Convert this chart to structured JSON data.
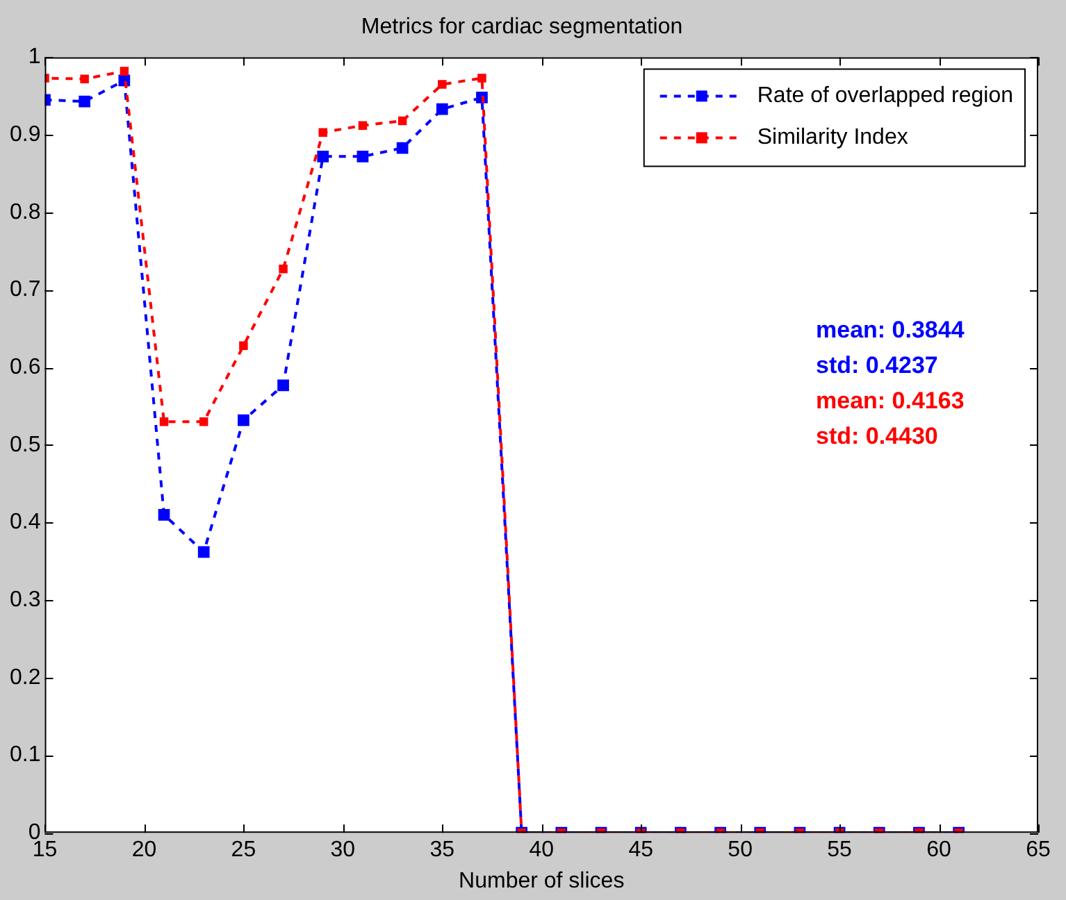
{
  "chart_data": {
    "type": "line",
    "title": "Metrics for cardiac segmentation",
    "xlabel": "Number of slices",
    "x": [
      15,
      17,
      19,
      21,
      23,
      25,
      27,
      29,
      31,
      33,
      35,
      37,
      39,
      41,
      43,
      45,
      47,
      49,
      51,
      53,
      55,
      57,
      59,
      61
    ],
    "series": [
      {
        "name": "Rate of overlapped region",
        "color": "#0000ff",
        "values": [
          0.945,
          0.943,
          0.97,
          0.41,
          0.362,
          0.532,
          0.577,
          0.872,
          0.872,
          0.883,
          0.933,
          0.948,
          0,
          0,
          0,
          0,
          0,
          0,
          0,
          0,
          0,
          0,
          0,
          0
        ]
      },
      {
        "name": "Similarity Index",
        "color": "#ff0000",
        "values": [
          0.973,
          0.972,
          0.982,
          0.53,
          0.53,
          0.628,
          0.727,
          0.903,
          0.912,
          0.918,
          0.965,
          0.973,
          0,
          0,
          0,
          0,
          0,
          0,
          0,
          0,
          0,
          0,
          0,
          0
        ]
      }
    ],
    "xlim": [
      15,
      65
    ],
    "xticks": [
      15,
      20,
      25,
      30,
      35,
      40,
      45,
      50,
      55,
      60,
      65
    ],
    "ylim": [
      0,
      1
    ],
    "yticks": [
      0,
      0.1,
      0.2,
      0.3,
      0.4,
      0.5,
      0.6,
      0.7,
      0.8,
      0.9,
      1
    ],
    "annotations": [
      "mean: 0.3844",
      "std: 0.4237",
      "mean: 0.4163",
      "std: 0.4430"
    ],
    "grid": false,
    "legend": "top right",
    "marker": "square",
    "line_style": "dashed"
  }
}
